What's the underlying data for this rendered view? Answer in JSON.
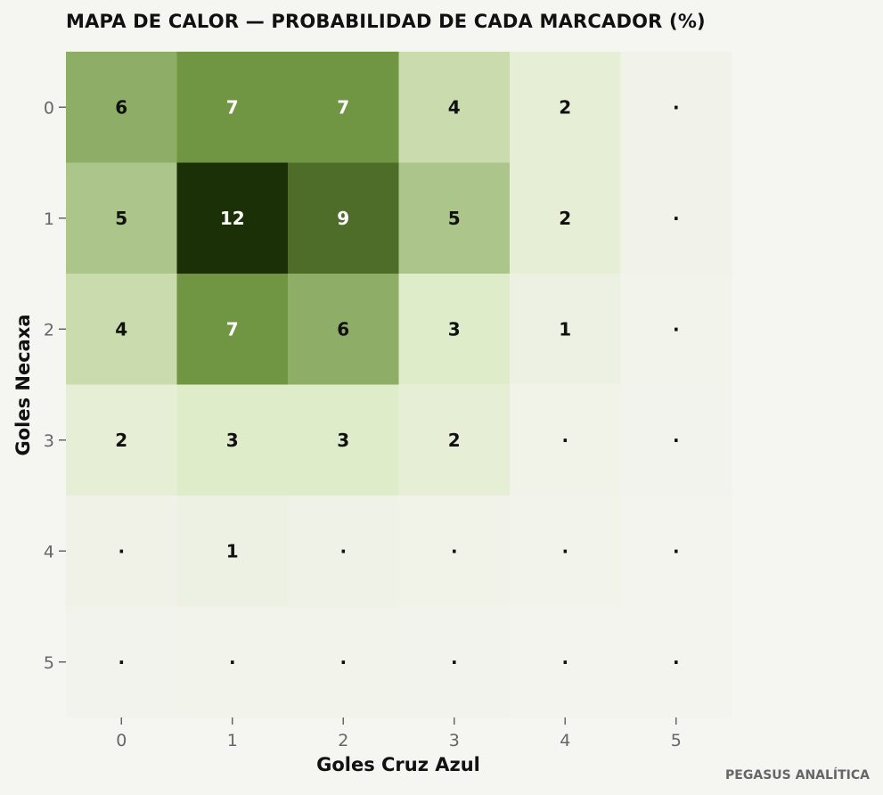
{
  "chart_data": {
    "type": "heatmap",
    "title": "MAPA DE CALOR — PROBABILIDAD DE CADA MARCADOR (%)",
    "xlabel": "Goles Cruz Azul",
    "ylabel": "Goles Necaxa",
    "x_categories": [
      "0",
      "1",
      "2",
      "3",
      "4",
      "5"
    ],
    "y_categories": [
      "0",
      "1",
      "2",
      "3",
      "4",
      "5"
    ],
    "values": [
      [
        6,
        7,
        7,
        4,
        2,
        0.4
      ],
      [
        5,
        12,
        9,
        5,
        2,
        0.4
      ],
      [
        4,
        7,
        6,
        3,
        1,
        0.3
      ],
      [
        2,
        3,
        3,
        2,
        0.5,
        0.2
      ],
      [
        0.6,
        1,
        0.7,
        0.5,
        0.3,
        0.1
      ],
      [
        0.2,
        0.3,
        0.3,
        0.2,
        0.1,
        0.05
      ]
    ],
    "labels": [
      [
        "6",
        "7",
        "7",
        "4",
        "2",
        "·"
      ],
      [
        "5",
        "12",
        "9",
        "5",
        "2",
        "·"
      ],
      [
        "4",
        "7",
        "6",
        "3",
        "1",
        "·"
      ],
      [
        "2",
        "3",
        "3",
        "2",
        "·",
        "·"
      ],
      [
        "·",
        "1",
        "·",
        "·",
        "·",
        "·"
      ],
      [
        "·",
        "·",
        "·",
        "·",
        "·",
        "·"
      ]
    ],
    "colorscale": [
      "#f4f4ef",
      "#ddebc5",
      "#6a913c",
      "#1c3008"
    ],
    "legend": "none",
    "grid": false
  },
  "watermark": "PEGASUS ANALÍTICA"
}
